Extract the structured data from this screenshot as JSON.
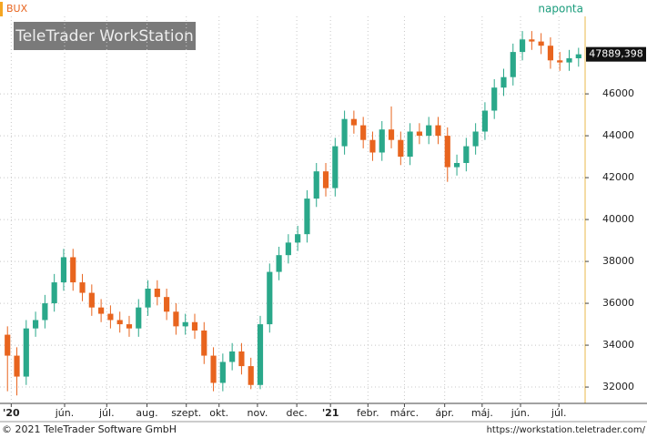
{
  "chart_data": {
    "type": "candlestick",
    "title": "BUX",
    "subtitle": "naponta",
    "watermark": "TeleTrader WorkStation",
    "footer_left": "© 2021 TeleTrader Software GmbH",
    "footer_right": "https://workstation.teletrader.com/",
    "up_color": "#2aa88a",
    "down_color": "#e8641e",
    "grid": true,
    "x": [
      0,
      1,
      2,
      3,
      4,
      5,
      6,
      7,
      8,
      9,
      10,
      11,
      12,
      13,
      14,
      15,
      16,
      17,
      18,
      19,
      20,
      21,
      22,
      23,
      24,
      25,
      26,
      27,
      28,
      29,
      30,
      31,
      32,
      33,
      34,
      35,
      36,
      37,
      38,
      39,
      40,
      41,
      42,
      43,
      44,
      45,
      46,
      47,
      48,
      49,
      50,
      51,
      52,
      53,
      54,
      55,
      56,
      57,
      58,
      59,
      60,
      61
    ],
    "open": [
      34500,
      33500,
      32500,
      34800,
      35200,
      36000,
      37000,
      38200,
      37000,
      36500,
      35800,
      35500,
      35200,
      35000,
      34800,
      35800,
      36700,
      36300,
      35600,
      34900,
      35100,
      34700,
      33500,
      32200,
      33200,
      33700,
      33000,
      32100,
      35000,
      37500,
      38300,
      38900,
      39300,
      41000,
      42300,
      41500,
      43500,
      44800,
      44500,
      43800,
      43200,
      44300,
      43800,
      43000,
      44200,
      44000,
      44500,
      44000,
      42500,
      42700,
      43500,
      44200,
      45200,
      46300,
      46800,
      48000,
      48600,
      48500,
      48300,
      47600,
      47500,
      47700
    ],
    "high": [
      34900,
      33900,
      35200,
      35600,
      36400,
      37400,
      38600,
      38600,
      37400,
      36900,
      36200,
      35900,
      35600,
      35400,
      36200,
      37100,
      37100,
      36700,
      36000,
      35500,
      35500,
      35100,
      33900,
      33600,
      34100,
      34100,
      33400,
      35400,
      37900,
      38700,
      39300,
      39700,
      41400,
      42700,
      42700,
      43900,
      45200,
      45200,
      44900,
      44200,
      44700,
      45400,
      44200,
      44600,
      44600,
      44900,
      44900,
      44400,
      43100,
      43900,
      44600,
      45600,
      46700,
      47200,
      48400,
      49000,
      49000,
      48900,
      48700,
      48000,
      48100,
      48200
    ],
    "low": [
      31800,
      31600,
      32100,
      34400,
      34800,
      35600,
      36600,
      36600,
      36100,
      35400,
      35100,
      34800,
      34600,
      34400,
      34400,
      35400,
      35900,
      35200,
      34500,
      34500,
      34300,
      33100,
      31800,
      31800,
      32800,
      32600,
      31900,
      31900,
      34600,
      37100,
      37900,
      38500,
      38900,
      40600,
      41100,
      41100,
      43100,
      44100,
      43400,
      42800,
      42800,
      43400,
      42600,
      42600,
      43600,
      43600,
      43600,
      41800,
      42100,
      42300,
      43100,
      43800,
      44800,
      45900,
      46400,
      47600,
      48100,
      47900,
      47200,
      47100,
      47100,
      47300
    ],
    "close": [
      33500,
      32500,
      34800,
      35200,
      36000,
      37000,
      38200,
      37000,
      36500,
      35800,
      35500,
      35200,
      35000,
      34800,
      35800,
      36700,
      36300,
      35600,
      34900,
      35100,
      34700,
      33500,
      32200,
      33200,
      33700,
      33000,
      32100,
      35000,
      37500,
      38300,
      38900,
      39300,
      41000,
      42300,
      41500,
      43500,
      44800,
      44500,
      43800,
      43200,
      44300,
      43800,
      43000,
      44200,
      44000,
      44500,
      44000,
      42500,
      42700,
      43500,
      44200,
      45200,
      46300,
      46800,
      48000,
      48600,
      48500,
      48300,
      47600,
      47500,
      47700,
      47889.398
    ],
    "last_price": {
      "value": 47889.398,
      "label": "47889,398"
    },
    "xlim": [
      -0.8,
      61.7
    ],
    "xticks": [
      {
        "value": 0.4,
        "label": "'20"
      },
      {
        "value": 6.1,
        "label": "jún."
      },
      {
        "value": 10.6,
        "label": "júl."
      },
      {
        "value": 14.9,
        "label": "aug."
      },
      {
        "value": 19.1,
        "label": "szept."
      },
      {
        "value": 22.6,
        "label": "okt."
      },
      {
        "value": 26.7,
        "label": "nov."
      },
      {
        "value": 30.9,
        "label": "dec."
      },
      {
        "value": 34.5,
        "label": "'21"
      },
      {
        "value": 38.5,
        "label": "febr."
      },
      {
        "value": 42.4,
        "label": "márc."
      },
      {
        "value": 46.7,
        "label": "ápr."
      },
      {
        "value": 50.7,
        "label": "máj."
      },
      {
        "value": 54.8,
        "label": "jún."
      },
      {
        "value": 58.9,
        "label": "júl."
      }
    ],
    "ylim": [
      31220,
      49700
    ],
    "yticks": [
      32000,
      34000,
      36000,
      38000,
      40000,
      42000,
      44000,
      46000
    ]
  }
}
